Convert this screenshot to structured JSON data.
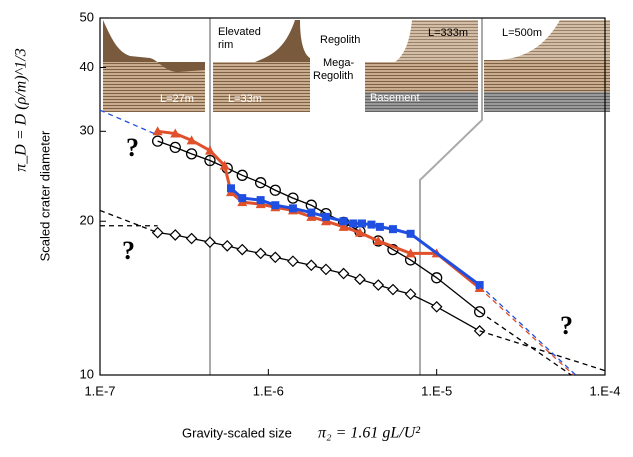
{
  "chart_data": {
    "type": "scatter",
    "xlog": true,
    "ylog": true,
    "xlim": [
      1e-07,
      0.0001
    ],
    "ylim": [
      10,
      50
    ],
    "xticks": [
      {
        "value": 1e-07,
        "label": "1.E-7"
      },
      {
        "value": 1e-06,
        "label": "1.E-6"
      },
      {
        "value": 1e-05,
        "label": "1.E-5"
      },
      {
        "value": 0.0001,
        "label": "1.E-4"
      }
    ],
    "yticks": [
      10,
      20,
      30,
      40,
      50
    ],
    "x_label": "Gravity-scaled size",
    "x_formula": "π₂ = 1.61 gL/U²",
    "y_label": "Scaled crater diameter",
    "y_formula": "π_D = D (ρ/m)^1/3",
    "annotations": [
      "?",
      "?",
      "?",
      "Elevated",
      "rim",
      "Regolith",
      "Mega-",
      "Regolith",
      "Basement",
      "L=27m",
      "L=33m",
      "L=333m",
      "L=500m"
    ],
    "series": [
      {
        "color": "#000000",
        "marker": "circle",
        "line": true,
        "x": [
          2.2e-07,
          2.8e-07,
          3.5e-07,
          4.5e-07,
          5.7e-07,
          7e-07,
          9e-07,
          1.1e-06,
          1.4e-06,
          1.8e-06,
          2.2e-06,
          2.8e-06,
          3.5e-06,
          4.5e-06,
          5.5e-06,
          7e-06,
          1e-05,
          1.8e-05
        ],
        "values": [
          28.7,
          27.9,
          27.1,
          26.3,
          25.4,
          24.6,
          23.8,
          23.0,
          22.2,
          21.5,
          20.7,
          19.9,
          19.1,
          18.3,
          17.6,
          16.8,
          15.5,
          13.3
        ]
      },
      {
        "color": "#000000",
        "marker": "diamond",
        "line": true,
        "x": [
          2.2e-07,
          2.8e-07,
          3.5e-07,
          4.5e-07,
          5.7e-07,
          7e-07,
          9e-07,
          1.1e-06,
          1.4e-06,
          1.8e-06,
          2.2e-06,
          2.8e-06,
          3.5e-06,
          4.5e-06,
          5.5e-06,
          7e-06,
          1e-05,
          1.8e-05
        ],
        "values": [
          19.0,
          18.8,
          18.5,
          18.2,
          17.9,
          17.6,
          17.3,
          17.0,
          16.7,
          16.4,
          16.1,
          15.8,
          15.4,
          15.0,
          14.7,
          14.4,
          13.6,
          12.2
        ]
      },
      {
        "color": "#e0502a",
        "marker": "triangle",
        "line": true,
        "x": [
          2.2e-07,
          2.8e-07,
          3.5e-07,
          4.5e-07,
          5.5e-07,
          6e-07,
          7e-07,
          9e-07,
          1.1e-06,
          1.4e-06,
          1.8e-06,
          2.2e-06,
          2.8e-06,
          3.5e-06,
          4.5e-06,
          7e-06,
          1e-05,
          1.8e-05
        ],
        "values": [
          30.0,
          29.7,
          28.8,
          27.5,
          25.7,
          22.8,
          21.8,
          21.6,
          21.3,
          21.0,
          20.4,
          20.0,
          19.5,
          19.0,
          18.3,
          17.3,
          17.3,
          14.8
        ]
      },
      {
        "color": "#1f4fe0",
        "marker": "square",
        "line": true,
        "x": [
          6e-07,
          7e-07,
          9e-07,
          1.1e-06,
          1.4e-06,
          1.8e-06,
          2.2e-06,
          2.8e-06,
          3.2e-06,
          3.6e-06,
          4.1e-06,
          4.6e-06,
          5.5e-06,
          7e-06,
          1.8e-05
        ],
        "values": [
          23.2,
          22.2,
          22.0,
          21.5,
          21.2,
          20.8,
          20.4,
          20.0,
          19.8,
          19.8,
          19.7,
          19.5,
          19.3,
          18.9,
          15.0
        ]
      },
      {
        "color": "#1f4fe0",
        "marker": "none",
        "dash": true,
        "x": [
          1e-07,
          2.2e-07
        ],
        "values": [
          33.0,
          29.5
        ]
      },
      {
        "color": "#000000",
        "marker": "none",
        "dash": true,
        "x": [
          1e-07,
          2.2e-07
        ],
        "values": [
          21.0,
          19.0
        ]
      },
      {
        "color": "#000000",
        "marker": "none",
        "dash": true,
        "x": [
          1e-07,
          2.2e-07
        ],
        "values": [
          19.6,
          19.6
        ]
      },
      {
        "color": "#000000",
        "marker": "none",
        "dash": true,
        "x": [
          1.8e-05,
          0.0001
        ],
        "values": [
          12.2,
          10.2
        ]
      },
      {
        "color": "#000000",
        "marker": "none",
        "dash": true,
        "x": [
          1.8e-05,
          6.3e-05
        ],
        "values": [
          13.3,
          10
        ]
      },
      {
        "color": "#e0502a",
        "marker": "none",
        "dash": true,
        "x": [
          1.8e-05,
          6.5e-05
        ],
        "values": [
          14.8,
          10
        ]
      },
      {
        "color": "#1f4fe0",
        "marker": "none",
        "dash": true,
        "x": [
          1.8e-05,
          6.7e-05
        ],
        "values": [
          15.0,
          10
        ]
      }
    ]
  }
}
